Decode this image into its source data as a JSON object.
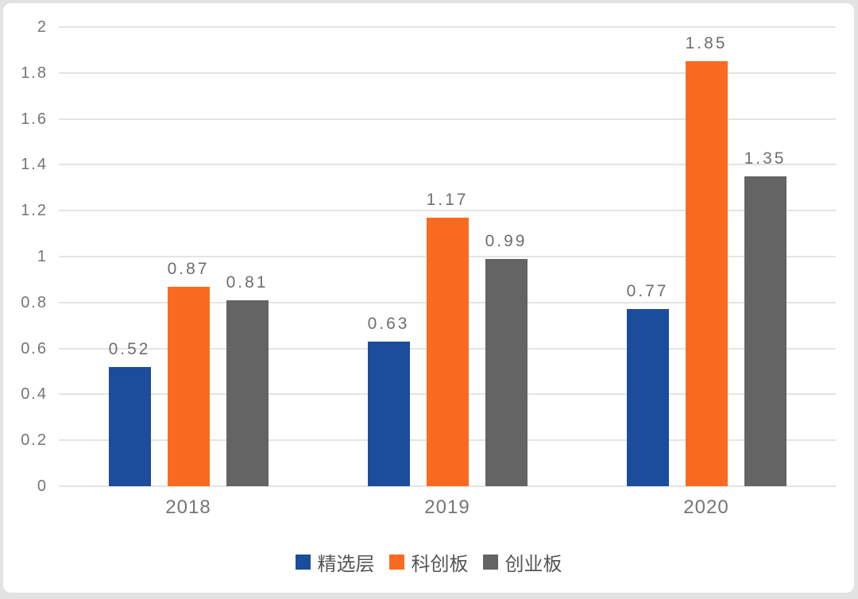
{
  "chart_data": {
    "type": "bar",
    "title": "",
    "categories": [
      "2018",
      "2019",
      "2020"
    ],
    "series": [
      {
        "name": "精选层",
        "color": "#1C4C9C",
        "values": [
          0.52,
          0.63,
          0.77
        ]
      },
      {
        "name": "科创板",
        "color": "#FB6A21",
        "values": [
          0.87,
          1.17,
          1.85
        ]
      },
      {
        "name": "创业板",
        "color": "#646464",
        "values": [
          0.81,
          0.99,
          1.35
        ]
      }
    ],
    "ylim": [
      0,
      2
    ],
    "yticks": [
      {
        "value": 0,
        "label": "0"
      },
      {
        "value": 0.2,
        "label": "0.2"
      },
      {
        "value": 0.4,
        "label": "0.4"
      },
      {
        "value": 0.6,
        "label": "0.6"
      },
      {
        "value": 0.8,
        "label": "0.8"
      },
      {
        "value": 1,
        "label": "1"
      },
      {
        "value": 1.2,
        "label": "1.2"
      },
      {
        "value": 1.4,
        "label": "1.4"
      },
      {
        "value": 1.6,
        "label": "1.6"
      },
      {
        "value": 1.8,
        "label": "1.8"
      },
      {
        "value": 2,
        "label": "2"
      }
    ],
    "grid": true,
    "data_labels": true,
    "legend_position": "bottom",
    "xlabel": "",
    "ylabel": ""
  },
  "colors": {
    "background": "#e2e2e2",
    "card": "#ffffff",
    "gridline": "#e4e4e4",
    "axis_text": "#757575",
    "value_label": "#6e6e6e",
    "legend_text": "#555555"
  }
}
